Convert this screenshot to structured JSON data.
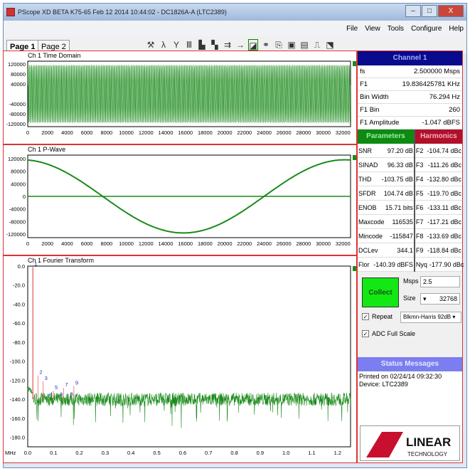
{
  "window": {
    "title": "PScope XD BETA K75-65 Feb 12 2014 10:44:02 - DC1826A-A (LTC2389)",
    "min": "–",
    "max": "□",
    "close": "X"
  },
  "menu": [
    "File",
    "View",
    "Tools",
    "Configure",
    "Help"
  ],
  "tabs": [
    "Page 1",
    "Page 2"
  ],
  "toolbar_icons": [
    "probe-icon",
    "lambda-icon",
    "filter-icon",
    "bars-icon",
    "histogram-icon",
    "histogram-alt-icon",
    "avg-icon",
    "avg-arrow-icon",
    "waveform-icon",
    "link-icon",
    "export-icon",
    "save-icon",
    "save-selected-icon",
    "pulse-icon",
    "chart-export-icon"
  ],
  "colors": {
    "trace": "#1a8a1a",
    "border": "#dd3333",
    "channel": "#0a0a8c",
    "parameters": "#0c8a12",
    "harmonics": "#b0102a",
    "collect": "#14e814",
    "status": "#7b7ef0"
  },
  "channel": {
    "title": "Channel 1",
    "rows": [
      [
        "fs",
        "2.500000 Msps"
      ],
      [
        "F1",
        "19.836425781 KHz"
      ],
      [
        "Bin Width",
        "76.294 Hz"
      ],
      [
        "F1 Bin",
        "260"
      ],
      [
        "F1 Amplitude",
        "-1.047 dBFS"
      ]
    ]
  },
  "parameters": {
    "title": "Parameters",
    "rows": [
      [
        "SNR",
        "97.20 dB"
      ],
      [
        "SINAD",
        "96.33 dB"
      ],
      [
        "THD",
        "-103.75 dB"
      ],
      [
        "SFDR",
        "104.74 dB"
      ],
      [
        "ENOB",
        "15.71 bits"
      ],
      [
        "Maxcode",
        "116535"
      ],
      [
        "Mincode",
        "-115847"
      ],
      [
        "DCLev",
        "344.1"
      ],
      [
        "Flor",
        "-140.39 dBFS"
      ]
    ]
  },
  "harmonics": {
    "title": "Harmonics",
    "rows": [
      [
        "F2",
        "-104.74 dBc"
      ],
      [
        "F3",
        "-111.26 dBc"
      ],
      [
        "F4",
        "-132.80 dBc"
      ],
      [
        "F5",
        "-119.70 dBc"
      ],
      [
        "F6",
        "-133.11 dBc"
      ],
      [
        "F7",
        "-117.21 dBc"
      ],
      [
        "F8",
        "-133.69 dBc"
      ],
      [
        "F9",
        "-118.84 dBc"
      ],
      [
        "Nyq",
        "-177.90 dBc"
      ]
    ]
  },
  "controls": {
    "collect": "Collect",
    "msps_label": "Msps",
    "msps": "2.5",
    "size_label": "Size",
    "size": "32768",
    "repeat": "Repeat",
    "repeat_checked": true,
    "window_fn": "Blkmn-Harris 92dB",
    "adc_full_scale": "ADC Full Scale",
    "adc_checked": true
  },
  "status": {
    "title": "Status Messages",
    "lines": [
      "Printed on 02/24/14 09:32:30",
      "Device: LTC2389"
    ]
  },
  "logo": {
    "text": "LINEAR TECHNOLOGY"
  },
  "chart_data": [
    {
      "type": "line",
      "title": "Ch 1 Time Domain",
      "xlim": [
        0,
        32768
      ],
      "ylim": [
        -131072,
        131072
      ],
      "xticks": [
        0,
        2000,
        4000,
        6000,
        8000,
        10000,
        12000,
        14000,
        16000,
        18000,
        20000,
        22000,
        24000,
        26000,
        28000,
        30000,
        32000
      ],
      "yticks": [
        120000,
        80000,
        40000,
        -40000,
        -80000,
        -120000
      ],
      "series": [
        {
          "kind": "sine",
          "amplitude": 116200,
          "cycles": 260
        }
      ]
    },
    {
      "type": "line",
      "title": "Ch 1 P-Wave",
      "xlim": [
        0,
        32768
      ],
      "ylim": [
        -131072,
        131072
      ],
      "xticks": [
        0,
        2000,
        4000,
        6000,
        8000,
        10000,
        12000,
        14000,
        16000,
        18000,
        20000,
        22000,
        24000,
        26000,
        28000,
        30000,
        32000
      ],
      "yticks": [
        120000,
        80000,
        40000,
        0,
        -40000,
        -80000,
        -120000
      ],
      "series": [
        {
          "kind": "sine",
          "amplitude": 116200,
          "cycles": 1,
          "min_at": 15800
        }
      ]
    },
    {
      "type": "line",
      "title": "Ch 1 Fourier Transform",
      "xlabel": "MHz",
      "xlim": [
        0,
        1.25
      ],
      "ylim": [
        -190,
        0
      ],
      "xticks": [
        "0.0",
        "0.1",
        "0.2",
        "0.3",
        "0.4",
        "0.5",
        "0.6",
        "0.7",
        "0.8",
        "0.9",
        "1.0",
        "1.1",
        "1.2"
      ],
      "yticks": [
        "0.0",
        "-20.0",
        "-40.0",
        "-60.0",
        "-80.0",
        "-100.0",
        "-120.0",
        "-140.0",
        "-160.0",
        "-180.0"
      ],
      "noise_floor": -140,
      "harmonic_markers": [
        {
          "n": "1",
          "f": 0.0198,
          "db": -1.0
        },
        {
          "n": "2",
          "f": 0.0397,
          "db": -115
        },
        {
          "n": "3",
          "f": 0.0595,
          "db": -121
        },
        {
          "n": "4",
          "f": 0.0793,
          "db": -138
        },
        {
          "n": "5",
          "f": 0.0992,
          "db": -131
        },
        {
          "n": "6",
          "f": 0.119,
          "db": -138
        },
        {
          "n": "7",
          "f": 0.1389,
          "db": -128
        },
        {
          "n": "8",
          "f": 0.1587,
          "db": -138
        },
        {
          "n": "9",
          "f": 0.1785,
          "db": -126
        }
      ]
    }
  ]
}
